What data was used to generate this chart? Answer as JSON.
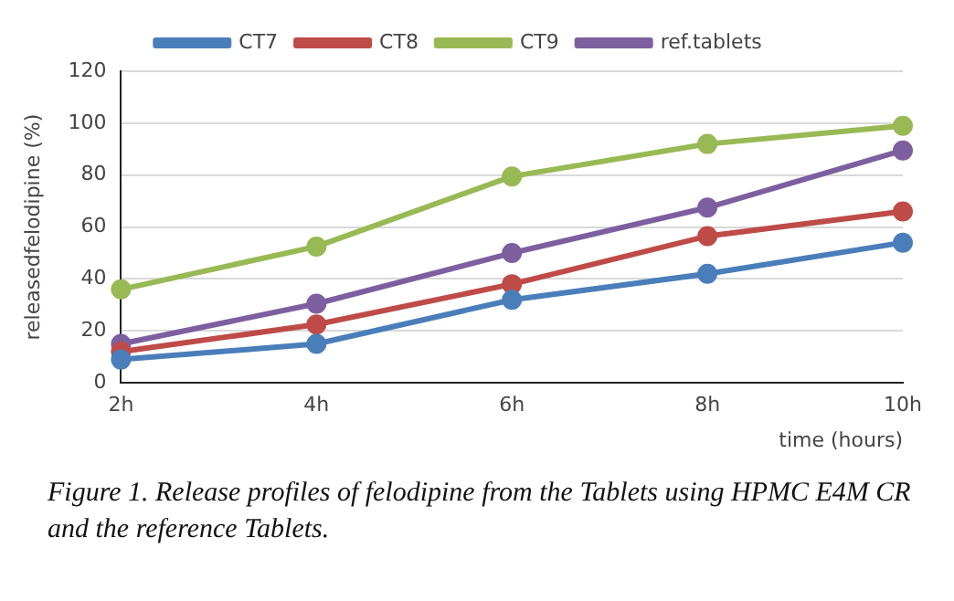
{
  "chart_data": {
    "type": "line",
    "xlabel": "time (hours)",
    "ylabel": "releasedfelodipine (%)",
    "categories": [
      "2h",
      "4h",
      "6h",
      "8h",
      "10h"
    ],
    "series": [
      {
        "name": "CT7",
        "color": "#4a7ebb",
        "values": [
          9,
          15,
          32,
          42,
          54
        ]
      },
      {
        "name": "CT8",
        "color": "#be4b48",
        "values": [
          12,
          22.5,
          38,
          56.5,
          66
        ]
      },
      {
        "name": "CT9",
        "color": "#98b954",
        "values": [
          36,
          52.5,
          79.5,
          92,
          99
        ]
      },
      {
        "name": "ref.tablets",
        "color": "#7d5fa0",
        "values": [
          15,
          30.5,
          50,
          67.5,
          89.5
        ]
      }
    ],
    "ylim": [
      0,
      120
    ],
    "yticks": [
      0,
      20,
      40,
      60,
      80,
      100,
      120
    ],
    "grid": "y",
    "legend": "top",
    "marker": "circle",
    "annotations": [
      "Figure 1. Release profiles of felodipine from the Tablets using HPMC E4M CR and the reference Tablets."
    ]
  }
}
